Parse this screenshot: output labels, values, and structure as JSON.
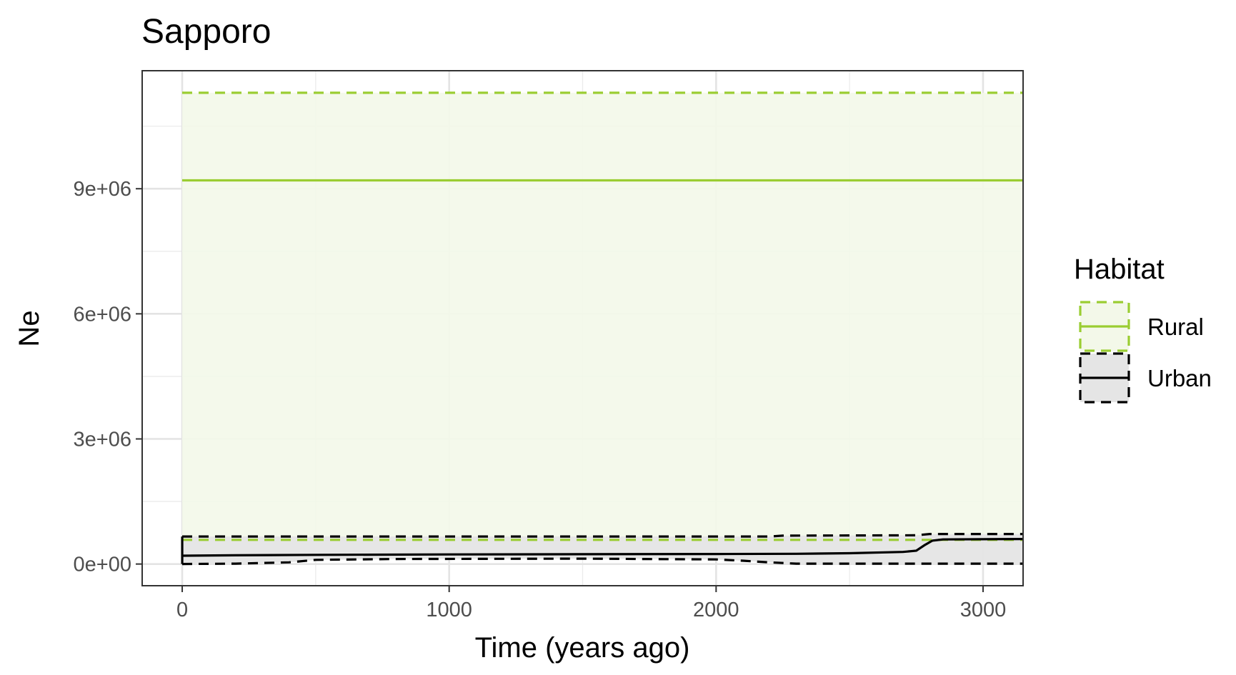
{
  "chart_data": {
    "type": "line",
    "title": "Sapporo",
    "xlabel": "Time (years ago)",
    "ylabel": "Ne",
    "xlim": [
      -150,
      3150
    ],
    "ylim": [
      -520000,
      11830000
    ],
    "x_ticks": [
      0,
      1000,
      2000,
      3000
    ],
    "x_tick_labels": [
      "0",
      "1000",
      "2000",
      "3000"
    ],
    "y_ticks": [
      0,
      3000000,
      6000000,
      9000000
    ],
    "y_tick_labels": [
      "0e+00",
      "3e+06",
      "6e+06",
      "9e+06"
    ],
    "grid": true,
    "legend": {
      "title": "Habitat",
      "position": "right",
      "entries": [
        "Rural",
        "Urban"
      ]
    },
    "series": [
      {
        "name": "Rural",
        "color": "#9acd32",
        "fill": "#f3f8e9",
        "median": [
          [
            0,
            9200000
          ],
          [
            3150,
            9200000
          ]
        ],
        "upper": [
          [
            0,
            11300000
          ],
          [
            3150,
            11300000
          ]
        ],
        "lower": [
          [
            0,
            580000
          ],
          [
            3150,
            580000
          ]
        ]
      },
      {
        "name": "Urban",
        "color": "#000000",
        "fill": "#e5e5e5",
        "median": [
          [
            0,
            200000
          ],
          [
            200,
            210000
          ],
          [
            500,
            220000
          ],
          [
            1000,
            230000
          ],
          [
            1500,
            235000
          ],
          [
            2000,
            240000
          ],
          [
            2300,
            245000
          ],
          [
            2500,
            260000
          ],
          [
            2700,
            290000
          ],
          [
            2750,
            320000
          ],
          [
            2780,
            450000
          ],
          [
            2810,
            560000
          ],
          [
            2850,
            590000
          ],
          [
            3150,
            600000
          ]
        ],
        "upper": [
          [
            0,
            660000
          ],
          [
            1000,
            660000
          ],
          [
            2200,
            660000
          ],
          [
            2250,
            680000
          ],
          [
            2750,
            690000
          ],
          [
            2800,
            720000
          ],
          [
            3150,
            720000
          ]
        ],
        "lower": [
          [
            0,
            0
          ],
          [
            200,
            10000
          ],
          [
            400,
            40000
          ],
          [
            500,
            100000
          ],
          [
            800,
            120000
          ],
          [
            1500,
            130000
          ],
          [
            2000,
            110000
          ],
          [
            2100,
            80000
          ],
          [
            2200,
            40000
          ],
          [
            2300,
            10000
          ],
          [
            3150,
            10000
          ]
        ]
      }
    ]
  }
}
